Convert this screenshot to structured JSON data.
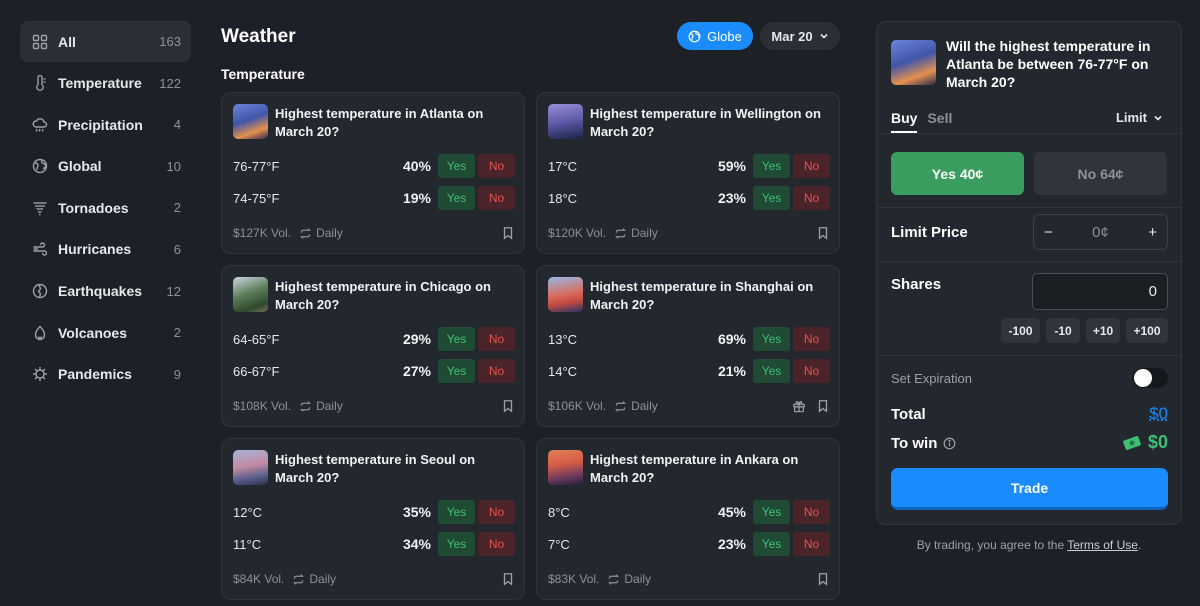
{
  "sidebar": {
    "items": [
      {
        "label": "All",
        "count": "163",
        "icon": "grid-icon"
      },
      {
        "label": "Temperature",
        "count": "122",
        "icon": "thermometer-icon"
      },
      {
        "label": "Precipitation",
        "count": "4",
        "icon": "rain-cloud-icon"
      },
      {
        "label": "Global",
        "count": "10",
        "icon": "globe-icon"
      },
      {
        "label": "Tornadoes",
        "count": "2",
        "icon": "tornado-icon"
      },
      {
        "label": "Hurricanes",
        "count": "6",
        "icon": "wind-icon"
      },
      {
        "label": "Earthquakes",
        "count": "12",
        "icon": "earthquake-icon"
      },
      {
        "label": "Volcanoes",
        "count": "2",
        "icon": "volcano-icon"
      },
      {
        "label": "Pandemics",
        "count": "9",
        "icon": "virus-icon"
      }
    ]
  },
  "header": {
    "title": "Weather",
    "globe_label": "Globe",
    "date_label": "Mar 20"
  },
  "section": {
    "title": "Temperature"
  },
  "cards": [
    {
      "title": "Highest temperature in Atlanta on March 20?",
      "thumb": "th-atl",
      "rows": [
        {
          "label": "76-77°F",
          "pct": "40%"
        },
        {
          "label": "74-75°F",
          "pct": "19%"
        }
      ],
      "volume": "$127K Vol.",
      "freq": "Daily"
    },
    {
      "title": "Highest temperature in Wellington on March 20?",
      "thumb": "th-wel",
      "rows": [
        {
          "label": "17°C",
          "pct": "59%"
        },
        {
          "label": "18°C",
          "pct": "23%"
        }
      ],
      "volume": "$120K Vol.",
      "freq": "Daily"
    },
    {
      "title": "Highest temperature in Chicago on March 20?",
      "thumb": "th-chi",
      "rows": [
        {
          "label": "64-65°F",
          "pct": "29%"
        },
        {
          "label": "66-67°F",
          "pct": "27%"
        }
      ],
      "volume": "$108K Vol.",
      "freq": "Daily"
    },
    {
      "title": "Highest temperature in Shanghai on March 20?",
      "thumb": "th-sha",
      "rows": [
        {
          "label": "13°C",
          "pct": "69%"
        },
        {
          "label": "14°C",
          "pct": "21%"
        }
      ],
      "volume": "$106K Vol.",
      "freq": "Daily",
      "gift": true
    },
    {
      "title": "Highest temperature in Seoul on March 20?",
      "thumb": "th-seo",
      "rows": [
        {
          "label": "12°C",
          "pct": "35%"
        },
        {
          "label": "11°C",
          "pct": "34%"
        }
      ],
      "volume": "$84K Vol.",
      "freq": "Daily"
    },
    {
      "title": "Highest temperature in Ankara on March 20?",
      "thumb": "th-ank",
      "rows": [
        {
          "label": "8°C",
          "pct": "45%"
        },
        {
          "label": "7°C",
          "pct": "23%"
        }
      ],
      "volume": "$83K Vol.",
      "freq": "Daily"
    }
  ],
  "buttons": {
    "yes": "Yes",
    "no": "No"
  },
  "panel": {
    "title": "Will the highest temperature in Atlanta be between 76-77°F on March 20?",
    "tab_buy": "Buy",
    "tab_sell": "Sell",
    "order_type": "Limit",
    "yes_label": "Yes 40¢",
    "no_label": "No 64¢",
    "limit_price_label": "Limit Price",
    "limit_price_value": "0¢",
    "shares_label": "Shares",
    "shares_value": "0",
    "quick": [
      "-100",
      "-10",
      "+10",
      "+100"
    ],
    "expiration_label": "Set Expiration",
    "total_label": "Total",
    "total_value": "$0",
    "win_label": "To win",
    "win_value": "$0",
    "trade_label": "Trade"
  },
  "terms": {
    "prefix": "By trading, you agree to the ",
    "link": "Terms of Use",
    "suffix": "."
  }
}
